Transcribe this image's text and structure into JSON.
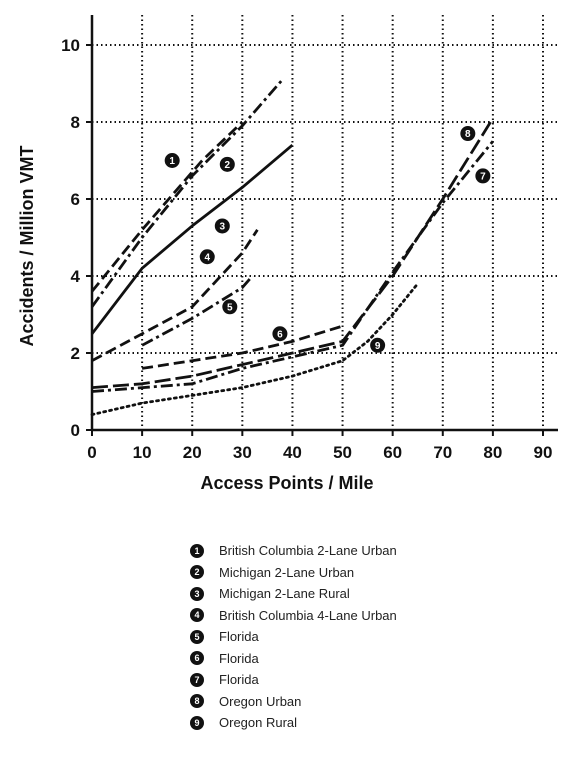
{
  "chart_data": {
    "type": "line",
    "xlabel": "Access Points / Mile",
    "ylabel": "Accidents / Million VMT",
    "xlim": [
      0,
      90
    ],
    "ylim": [
      0,
      10
    ],
    "xticks": [
      0,
      10,
      20,
      30,
      40,
      50,
      60,
      70,
      80,
      90
    ],
    "yticks": [
      0,
      2,
      4,
      6,
      8,
      10
    ],
    "grid": true,
    "legend_placement": "bottom",
    "series": [
      {
        "marker": "1",
        "name": "British Columbia 2-Lane Urban",
        "dash": "dashed",
        "x": [
          0,
          10,
          22,
          30
        ],
        "y": [
          3.6,
          5.2,
          7.0,
          8.0
        ]
      },
      {
        "marker": "2",
        "name": "Michigan 2-Lane Urban",
        "dash": "dashdot",
        "x": [
          0,
          10,
          20,
          30,
          38
        ],
        "y": [
          3.2,
          5.0,
          6.6,
          7.9,
          9.1
        ]
      },
      {
        "marker": "3",
        "name": "Michigan 2-Lane Rural",
        "dash": "solid",
        "x": [
          0,
          10,
          20,
          30,
          40
        ],
        "y": [
          2.5,
          4.2,
          5.3,
          6.3,
          7.4
        ]
      },
      {
        "marker": "4",
        "name": "British Columbia 4-Lane Urban",
        "dash": "dashed",
        "x": [
          0,
          10,
          20,
          30,
          33
        ],
        "y": [
          1.8,
          2.5,
          3.2,
          4.6,
          5.2
        ]
      },
      {
        "marker": "5",
        "name": "Florida",
        "dash": "dashdot",
        "x": [
          10,
          20,
          30,
          32
        ],
        "y": [
          2.2,
          2.9,
          3.7,
          4.0
        ]
      },
      {
        "marker": "6",
        "name": "Florida",
        "dash": "dashed",
        "x": [
          10,
          20,
          30,
          40,
          50
        ],
        "y": [
          1.6,
          1.8,
          2.0,
          2.3,
          2.7
        ]
      },
      {
        "marker": "7",
        "name": "Florida",
        "dash": "dashdot",
        "x": [
          0,
          20,
          30,
          40,
          50,
          60,
          70,
          80
        ],
        "y": [
          1.0,
          1.2,
          1.6,
          1.9,
          2.2,
          4.1,
          5.9,
          7.5
        ]
      },
      {
        "marker": "8",
        "name": "Oregon Urban",
        "dash": "longdash",
        "x": [
          0,
          10,
          20,
          30,
          40,
          50,
          60,
          70,
          80
        ],
        "y": [
          1.1,
          1.2,
          1.4,
          1.7,
          2.0,
          2.3,
          4.0,
          6.0,
          8.1
        ]
      },
      {
        "marker": "9",
        "name": "Oregon Rural",
        "dash": "dotted",
        "x": [
          0,
          10,
          20,
          30,
          40,
          50,
          55,
          60,
          65
        ],
        "y": [
          0.4,
          0.7,
          0.9,
          1.1,
          1.4,
          1.8,
          2.3,
          3.0,
          3.8
        ]
      }
    ]
  },
  "legend": {
    "items": [
      {
        "marker": "1",
        "label": "British Columbia 2-Lane Urban"
      },
      {
        "marker": "2",
        "label": "Michigan 2-Lane Urban"
      },
      {
        "marker": "3",
        "label": "Michigan 2-Lane Rural"
      },
      {
        "marker": "4",
        "label": "British Columbia 4-Lane Urban"
      },
      {
        "marker": "5",
        "label": "Florida"
      },
      {
        "marker": "6",
        "label": "Florida"
      },
      {
        "marker": "7",
        "label": "Florida"
      },
      {
        "marker": "8",
        "label": "Oregon Urban"
      },
      {
        "marker": "9",
        "label": "Oregon Rural"
      }
    ]
  },
  "colors": {
    "ink": "#111111",
    "background": "#ffffff"
  }
}
